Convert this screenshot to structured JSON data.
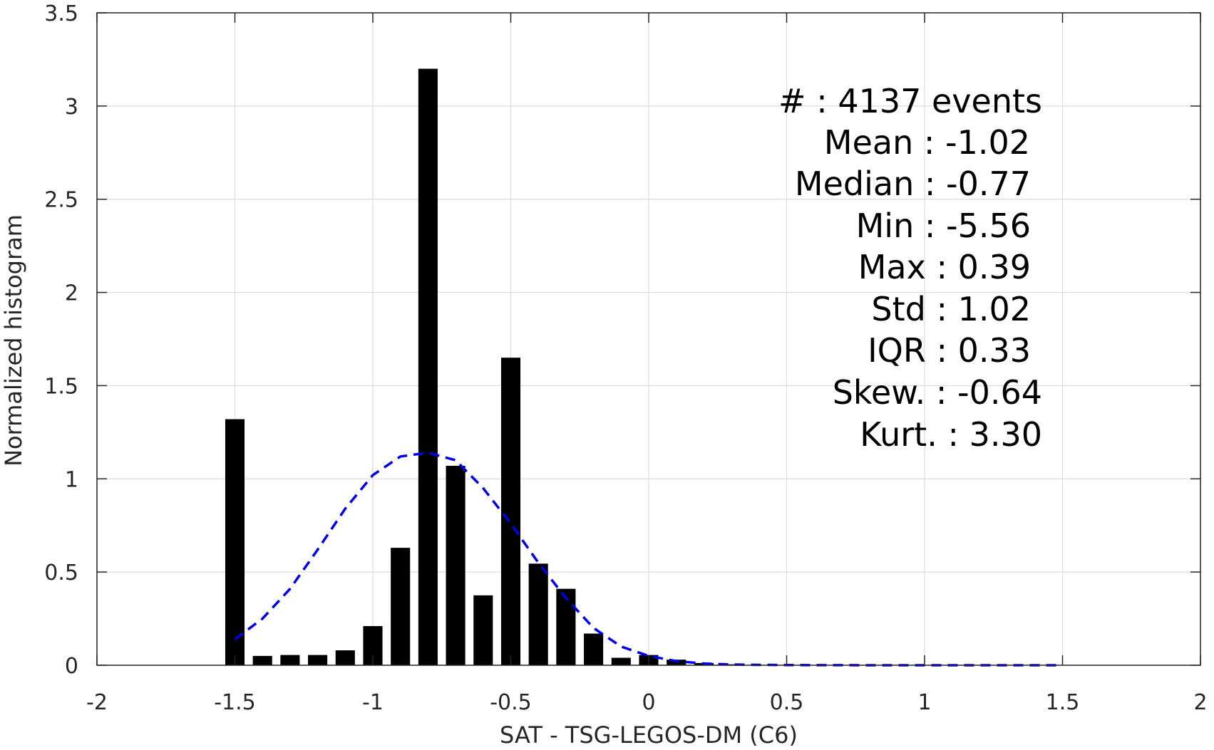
{
  "chart_data": {
    "type": "bar",
    "title": "",
    "xlabel": "SAT - TSG-LEGOS-DM (C6)",
    "ylabel": "Normalized histogram",
    "xlim": [
      -2,
      2
    ],
    "ylim": [
      0,
      3.5
    ],
    "x_ticks": [
      -2,
      -1.5,
      -1,
      -0.5,
      0,
      0.5,
      1,
      1.5,
      2
    ],
    "x_tick_labels": [
      "-2",
      "-1.5",
      "-1",
      "-0.5",
      "0",
      "0.5",
      "1",
      "1.5",
      "2"
    ],
    "y_ticks": [
      0,
      0.5,
      1,
      1.5,
      2,
      2.5,
      3,
      3.5
    ],
    "y_tick_labels": [
      "0",
      "0.5",
      "1",
      "1.5",
      "2",
      "2.5",
      "3",
      "3.5"
    ],
    "grid": true,
    "bar_width": 0.07,
    "bars": {
      "x": [
        -1.5,
        -1.4,
        -1.3,
        -1.2,
        -1.1,
        -1.0,
        -0.9,
        -0.8,
        -0.7,
        -0.6,
        -0.5,
        -0.4,
        -0.3,
        -0.2,
        -0.1,
        0.0,
        0.1,
        0.2,
        0.3
      ],
      "values": [
        1.32,
        0.05,
        0.055,
        0.055,
        0.08,
        0.21,
        0.63,
        3.2,
        1.07,
        0.375,
        1.65,
        0.545,
        0.41,
        0.17,
        0.04,
        0.055,
        0.03,
        0.012,
        0.005
      ],
      "color": "#000000"
    },
    "fit_curve": {
      "style": "dashed",
      "color": "#0000ee",
      "x": [
        -1.5,
        -1.4,
        -1.3,
        -1.2,
        -1.1,
        -1.0,
        -0.9,
        -0.8,
        -0.7,
        -0.6,
        -0.5,
        -0.4,
        -0.3,
        -0.2,
        -0.1,
        0.0,
        0.1,
        0.2,
        0.3,
        0.4,
        0.5,
        0.6,
        0.7,
        0.8,
        0.9,
        1.0,
        1.1,
        1.2,
        1.3,
        1.4,
        1.5
      ],
      "y": [
        0.14,
        0.25,
        0.41,
        0.62,
        0.84,
        1.02,
        1.12,
        1.14,
        1.1,
        0.95,
        0.76,
        0.55,
        0.36,
        0.2,
        0.1,
        0.05,
        0.022,
        0.009,
        0.004,
        0.002,
        0.001,
        0.0005,
        0.0002,
        0,
        0,
        0,
        0,
        0,
        0,
        0,
        0
      ]
    }
  },
  "stats": [
    "#   : 4137 events",
    "Mean : -1.02",
    "Median : -0.77",
    "Min : -5.56",
    "Max : 0.39",
    "Std : 1.02",
    "IQR : 0.33",
    "Skew. : -0.64",
    "Kurt. : 3.30"
  ],
  "colors": {
    "axis": "#262626",
    "grid": "#dcdcdc",
    "bars": "#000000",
    "fit": "#0000ee"
  }
}
